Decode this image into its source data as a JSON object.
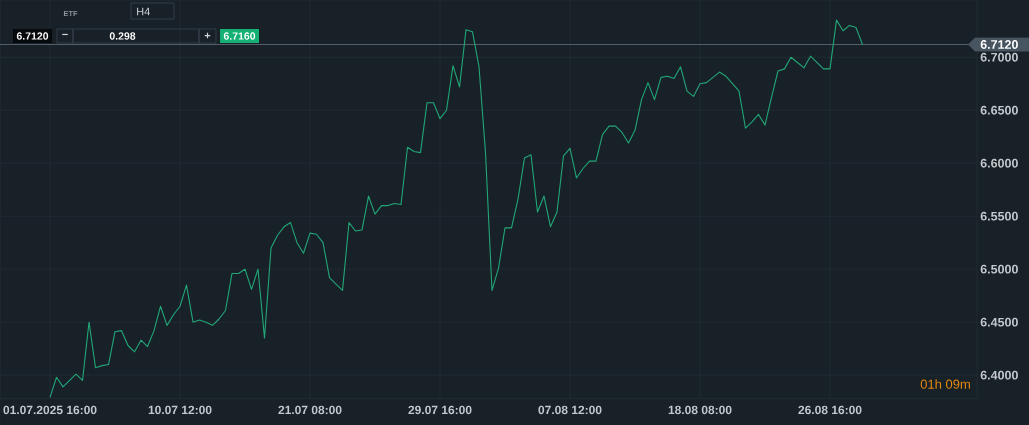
{
  "chart_data": {
    "type": "line",
    "categories": [
      "01.07.2025 16:00",
      null,
      null,
      null,
      null,
      null,
      null,
      null,
      null,
      null,
      null,
      null,
      null,
      null,
      null,
      null,
      null,
      null,
      null,
      null,
      "10.07 12:00",
      null,
      null,
      null,
      null,
      null,
      null,
      null,
      null,
      null,
      null,
      null,
      null,
      null,
      null,
      null,
      null,
      null,
      null,
      null,
      "21.07 08:00",
      null,
      null,
      null,
      null,
      null,
      null,
      null,
      null,
      null,
      null,
      null,
      null,
      null,
      null,
      null,
      null,
      null,
      null,
      null,
      "29.07 16:00",
      null,
      null,
      null,
      null,
      null,
      null,
      null,
      null,
      null,
      null,
      null,
      null,
      null,
      null,
      null,
      null,
      null,
      null,
      null,
      "07.08 12:00",
      null,
      null,
      null,
      null,
      null,
      null,
      null,
      null,
      null,
      null,
      null,
      null,
      null,
      null,
      null,
      null,
      null,
      null,
      null,
      "18.08 08:00",
      null,
      null,
      null,
      null,
      null,
      null,
      null,
      null,
      null,
      null,
      null,
      null,
      null,
      null,
      null,
      null,
      null,
      null,
      null,
      "26.08 16:00",
      null,
      null,
      null,
      null,
      null
    ],
    "values": [
      6.379,
      6.398,
      6.389,
      6.395,
      6.401,
      6.395,
      6.45,
      6.407,
      6.409,
      6.41,
      6.441,
      6.442,
      6.428,
      6.422,
      6.433,
      6.427,
      6.442,
      6.465,
      6.447,
      6.457,
      6.465,
      6.485,
      6.45,
      6.452,
      6.45,
      6.447,
      6.453,
      6.461,
      6.496,
      6.496,
      6.5,
      6.481,
      6.5,
      6.435,
      6.52,
      6.532,
      6.54,
      6.544,
      6.525,
      6.515,
      6.534,
      6.533,
      6.525,
      6.492,
      6.486,
      6.48,
      6.544,
      6.536,
      6.537,
      6.569,
      6.552,
      6.56,
      6.56,
      6.562,
      6.561,
      6.615,
      6.611,
      6.61,
      6.657,
      6.657,
      6.642,
      6.65,
      6.692,
      6.672,
      6.726,
      6.724,
      6.691,
      6.61,
      6.48,
      6.501,
      6.539,
      6.539,
      6.566,
      6.605,
      6.608,
      6.554,
      6.569,
      6.54,
      6.554,
      6.607,
      6.614,
      6.586,
      6.595,
      6.602,
      6.602,
      6.627,
      6.635,
      6.635,
      6.629,
      6.619,
      6.631,
      6.66,
      6.676,
      6.66,
      6.681,
      6.682,
      6.68,
      6.691,
      6.668,
      6.663,
      6.675,
      6.676,
      6.681,
      6.686,
      6.682,
      6.675,
      6.668,
      6.633,
      6.639,
      6.646,
      6.636,
      6.662,
      6.687,
      6.689,
      6.7,
      6.695,
      6.69,
      6.701,
      6.695,
      6.689,
      6.689,
      6.735,
      6.725,
      6.73,
      6.728,
      6.712
    ],
    "color": "#22a677",
    "ylim": [
      6.378,
      6.754
    ],
    "yticks": [
      {
        "value": 6.4,
        "label": "6.4000"
      },
      {
        "value": 6.45,
        "label": "6.4500"
      },
      {
        "value": 6.5,
        "label": "6.5000"
      },
      {
        "value": 6.55,
        "label": "6.5500"
      },
      {
        "value": 6.6,
        "label": "6.6000"
      },
      {
        "value": 6.65,
        "label": "6.6500"
      },
      {
        "value": 6.7,
        "label": "6.7000"
      }
    ],
    "grid": true,
    "ref_lines": [
      {
        "axis": "y",
        "value": 6.712,
        "label": "6.7120",
        "color": "#5a6570"
      }
    ],
    "annotations": [
      "ETF",
      "H4",
      "6.7120",
      "−",
      "0.298",
      "+",
      "6.7160",
      "01h 09m"
    ]
  }
}
